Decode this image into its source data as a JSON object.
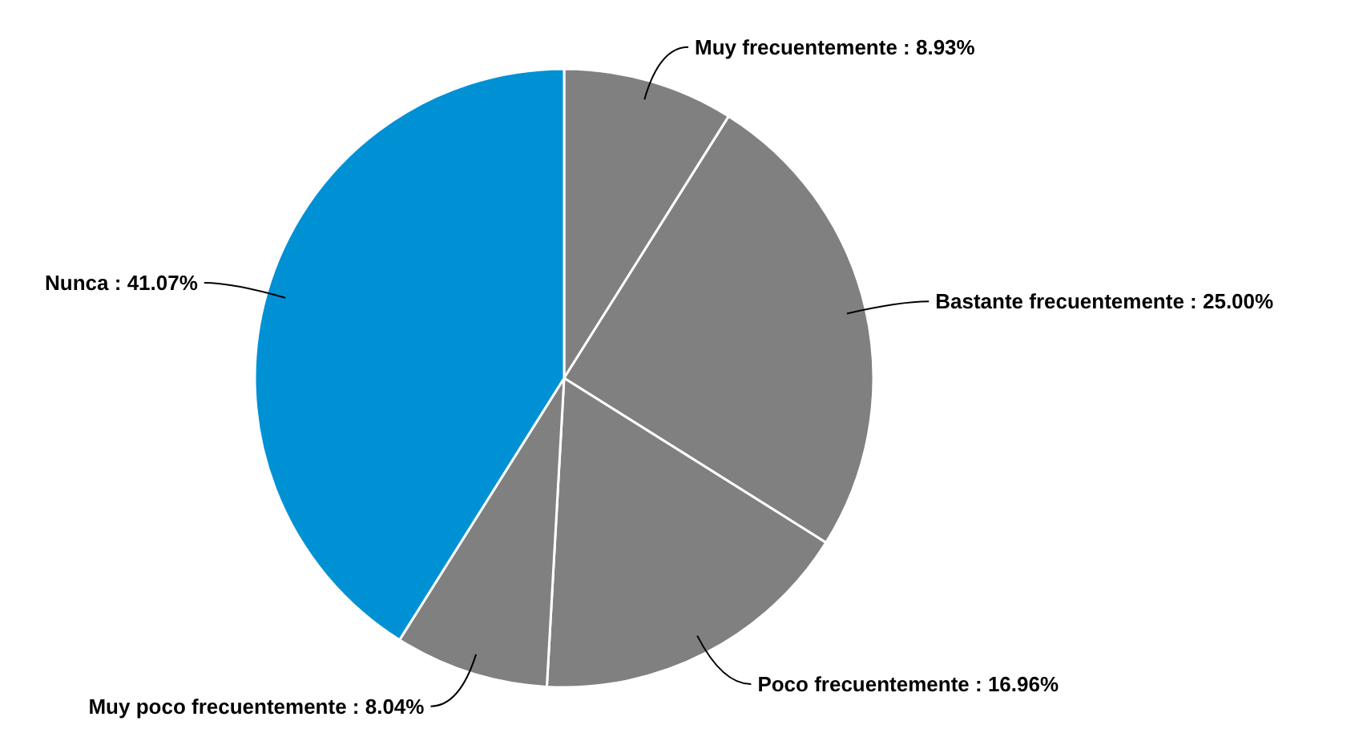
{
  "chart_data": {
    "type": "pie",
    "categories": [
      "Muy frecuentemente",
      "Bastante frecuentemente",
      "Poco frecuentemente",
      "Muy poco frecuentemente",
      "Nunca"
    ],
    "values": [
      8.93,
      25.0,
      16.96,
      8.04,
      41.07
    ],
    "value_labels": [
      "8.93%",
      "25.00%",
      "16.96%",
      "8.04%",
      "41.07%"
    ],
    "colors": [
      "#808080",
      "#808080",
      "#808080",
      "#808080",
      "#0091d5"
    ]
  }
}
